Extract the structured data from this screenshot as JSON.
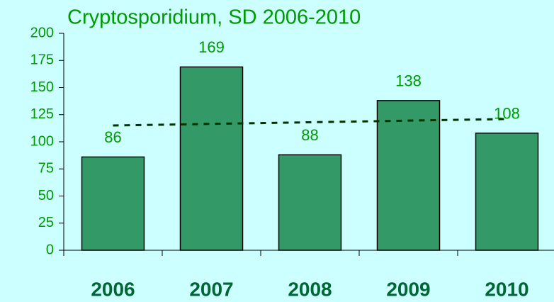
{
  "chart_data": {
    "type": "bar",
    "title": "Cryptosporidium, SD 2006-2010",
    "categories": [
      "2006",
      "2007",
      "2008",
      "2009",
      "2010"
    ],
    "values": [
      86,
      169,
      88,
      138,
      108
    ],
    "color": "#339966",
    "trend_values": [
      115,
      116.5,
      118,
      119.5,
      121
    ],
    "trend_color": "#003300",
    "ylim": [
      0,
      200
    ],
    "yticks": [
      0,
      25,
      50,
      75,
      100,
      125,
      150,
      175,
      200
    ]
  }
}
